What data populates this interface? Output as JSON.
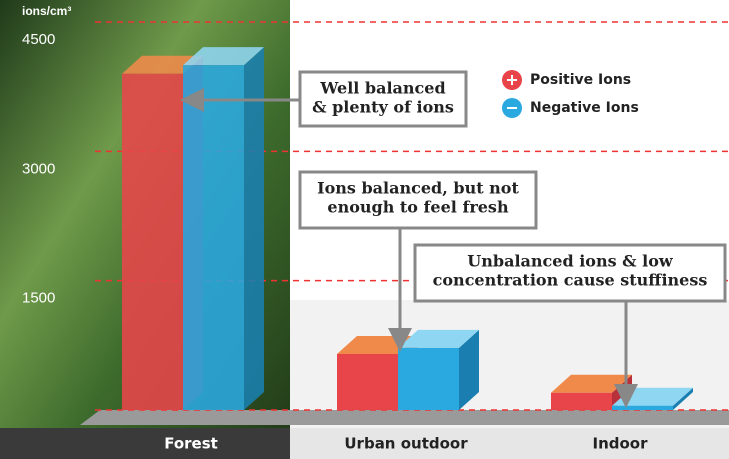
{
  "chart_data": {
    "type": "bar3d",
    "y_label": "ions/cm³",
    "categories": [
      "Forest",
      "Urban outdoor",
      "Indoor"
    ],
    "series": [
      {
        "name": "Positive Ions",
        "color": "#e8454a",
        "values": [
          3900,
          650,
          200
        ]
      },
      {
        "name": "Negative Ions",
        "color": "#2aa8e0",
        "values": [
          4000,
          720,
          50
        ]
      }
    ],
    "ylim": [
      0,
      4500
    ],
    "yticks": [
      1500,
      3000,
      4500
    ],
    "grid": true,
    "annotations": [
      [
        "Well balanced",
        "& plenty of ions"
      ],
      [
        "Ions balanced, but not",
        "enough to feel fresh"
      ],
      [
        "Unbalanced ions & low",
        "concentration cause stuffiness"
      ]
    ]
  }
}
